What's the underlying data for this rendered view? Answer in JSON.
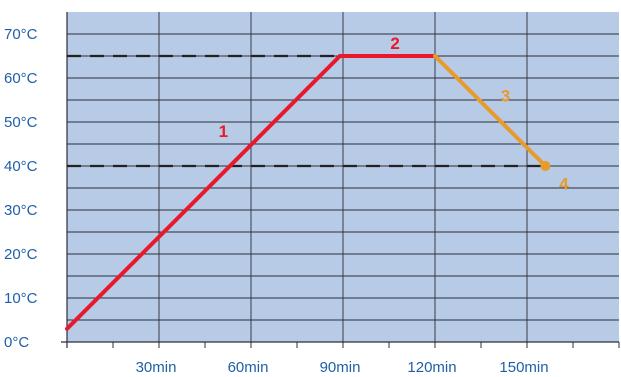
{
  "chart_data": {
    "type": "line",
    "title": "",
    "xlabel": "",
    "ylabel": "",
    "xlim": [
      0,
      180
    ],
    "ylim": [
      0,
      75
    ],
    "grid": true,
    "x_ticks": [
      30,
      60,
      90,
      120,
      150
    ],
    "x_tick_labels": [
      "30min",
      "60min",
      "90min",
      "120min",
      "150min"
    ],
    "y_ticks": [
      0,
      10,
      20,
      30,
      40,
      50,
      60,
      70
    ],
    "y_tick_labels": [
      "0°C",
      "10°C",
      "20°C",
      "30°C",
      "40°C",
      "50°C",
      "60°C",
      "70°C"
    ],
    "reference_lines": [
      {
        "y": 65,
        "style": "dashed"
      },
      {
        "y": 40,
        "style": "dashed"
      }
    ],
    "series": [
      {
        "color": "#e8192c",
        "points": [
          [
            0,
            3
          ],
          [
            89,
            65
          ]
        ]
      },
      {
        "color": "#e8192c",
        "points": [
          [
            89,
            65
          ],
          [
            120,
            65
          ]
        ]
      },
      {
        "color": "#e89a2a",
        "points": [
          [
            120,
            65
          ],
          [
            156,
            40
          ]
        ]
      }
    ],
    "end_marker": {
      "x": 156,
      "y": 40,
      "color": "#e89a2a"
    },
    "segment_labels": [
      {
        "text": "1",
        "x": 51,
        "y": 48,
        "color": "#e8192c"
      },
      {
        "text": "2",
        "x": 107,
        "y": 68,
        "color": "#e8192c"
      },
      {
        "text": "3",
        "x": 143,
        "y": 56,
        "color": "#e89a2a"
      },
      {
        "text": "4",
        "x": 162,
        "y": 36,
        "color": "#e89a2a"
      }
    ],
    "colors": {
      "plot_bg": "#b7cae6",
      "grid": "#2d2d3a",
      "axis_text": "#1f5fa6",
      "reference_line": "#222222"
    }
  }
}
